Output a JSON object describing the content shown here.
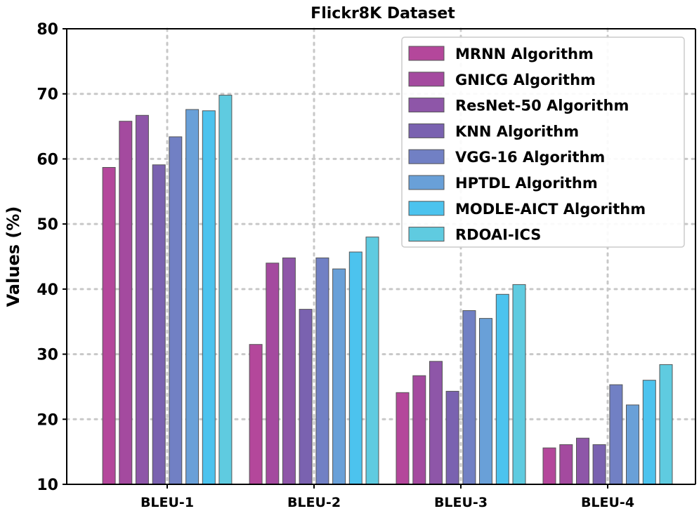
{
  "chart_data": {
    "type": "bar",
    "title": "Flickr8K Dataset",
    "xlabel": "",
    "ylabel": "Values (%)",
    "ylim": [
      10,
      80
    ],
    "yticks": [
      10,
      20,
      30,
      40,
      50,
      60,
      70,
      80
    ],
    "grid": true,
    "legend_position": "top-right",
    "categories": [
      "BLEU-1",
      "BLEU-2",
      "BLEU-3",
      "BLEU-4"
    ],
    "series": [
      {
        "name": "MRNN Algorithm",
        "color": "#b4479b",
        "values": [
          58.7,
          31.5,
          24.1,
          15.6
        ]
      },
      {
        "name": "GNICG Algorithm",
        "color": "#a44a9f",
        "values": [
          65.8,
          44.0,
          26.7,
          16.1
        ]
      },
      {
        "name": "ResNet-50 Algorithm",
        "color": "#8e56a8",
        "values": [
          66.7,
          44.8,
          28.9,
          17.1
        ]
      },
      {
        "name": "KNN Algorithm",
        "color": "#7a62b0",
        "values": [
          59.1,
          36.9,
          24.3,
          16.1
        ]
      },
      {
        "name": "VGG-16 Algorithm",
        "color": "#7180c4",
        "values": [
          63.4,
          44.8,
          36.7,
          25.3
        ]
      },
      {
        "name": "HPTDL Algorithm",
        "color": "#69a0d8",
        "values": [
          67.6,
          43.1,
          35.5,
          22.2
        ]
      },
      {
        "name": "MODLE-AICT Algorithm",
        "color": "#4cc3ee",
        "values": [
          67.4,
          45.7,
          39.2,
          26.0
        ]
      },
      {
        "name": "RDOAI-ICS",
        "color": "#5fcbe0",
        "values": [
          69.8,
          48.0,
          40.7,
          28.4
        ]
      }
    ]
  }
}
